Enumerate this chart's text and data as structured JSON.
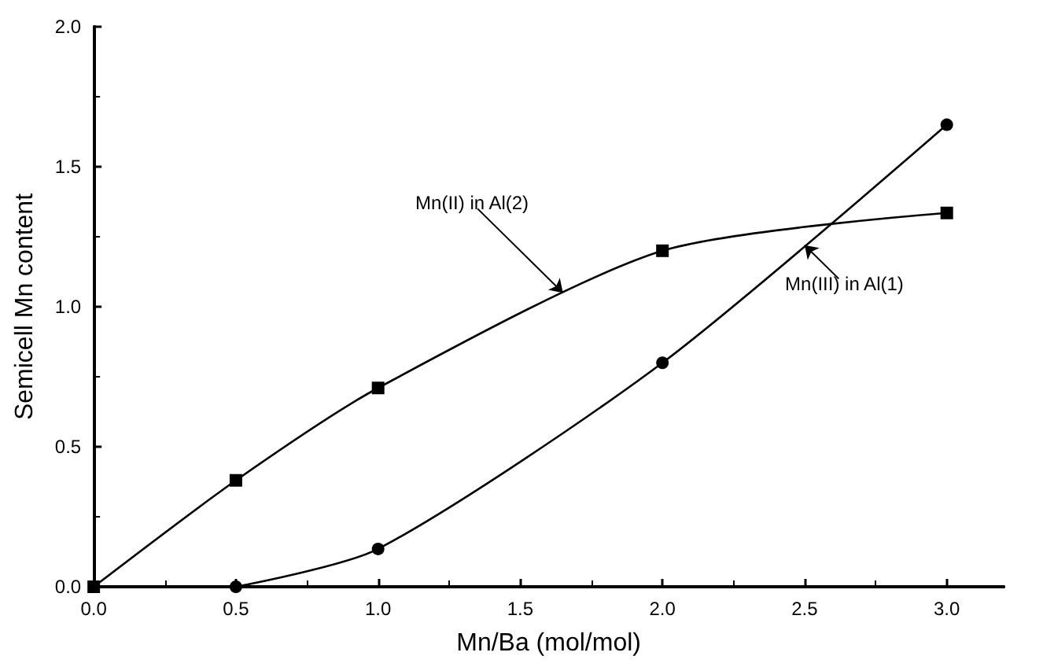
{
  "chart_data": {
    "type": "line",
    "xlabel": "Mn/Ba (mol/mol)",
    "ylabel": "Semicell Mn content",
    "xlim": [
      0,
      3.2
    ],
    "xticks": [
      {
        "value": 0,
        "label": "0.0"
      },
      {
        "value": 0.5,
        "label": "0.5"
      },
      {
        "value": 1,
        "label": "1.0"
      },
      {
        "value": 1.5,
        "label": "1.5"
      },
      {
        "value": 2,
        "label": "2.0"
      },
      {
        "value": 2.5,
        "label": "2.5"
      },
      {
        "value": 3,
        "label": "3.0"
      }
    ],
    "ylim": [
      0,
      2
    ],
    "yticks": [
      {
        "value": 0,
        "label": "0.0"
      },
      {
        "value": 0.5,
        "label": "0.5"
      },
      {
        "value": 1,
        "label": "1.0"
      },
      {
        "value": 1.5,
        "label": "1.5"
      },
      {
        "value": 2,
        "label": "2.0"
      }
    ],
    "grid": false,
    "series": [
      {
        "x": [
          0,
          0.5,
          1,
          2,
          3
        ],
        "values": [
          0,
          0.38,
          0.71,
          1.2,
          1.335
        ],
        "color": "#000000",
        "marker": "square"
      },
      {
        "x": [
          0.5,
          1,
          2,
          3
        ],
        "values": [
          0,
          0.135,
          0.8,
          1.65
        ],
        "color": "#000000",
        "marker": "circle"
      }
    ],
    "annotations": [
      {
        "text": "Mn(II) in Al(2)",
        "x": 1.65,
        "y": 1.05
      },
      {
        "text": "Mn(III) in Al(1)",
        "x": 2.5,
        "y": 1.22
      }
    ]
  }
}
